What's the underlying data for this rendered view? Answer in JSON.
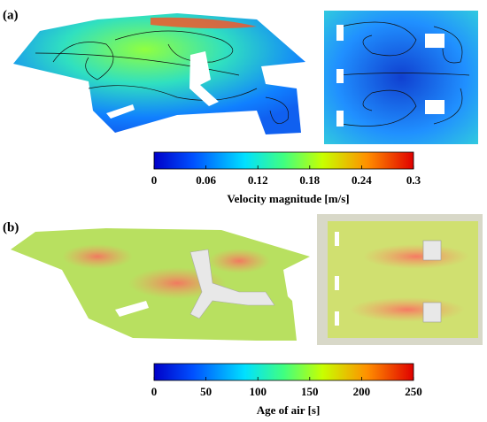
{
  "panels": [
    {
      "label": "(a)",
      "colorbar": {
        "label": "Velocity magnitude [m/s]",
        "lim": [
          0,
          0.3
        ],
        "ticks": [
          0,
          0.06,
          0.12,
          0.18,
          0.24,
          0.3
        ]
      }
    },
    {
      "label": "(b)",
      "colorbar": {
        "label": "Age of air [s]",
        "lim": [
          0,
          250
        ],
        "ticks": [
          0,
          50,
          100,
          150,
          200,
          250
        ]
      }
    }
  ]
}
